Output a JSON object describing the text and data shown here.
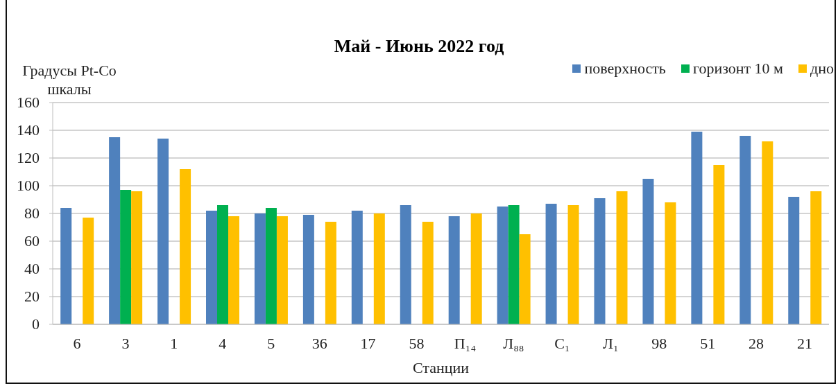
{
  "chart_data": {
    "type": "bar",
    "title": "Май - Июнь 2022 год",
    "ylabel": "Градусы Pt-Co шкалы",
    "xlabel": "Станции",
    "categories": [
      "6",
      "3",
      "1",
      "4",
      "5",
      "36",
      "17",
      "58",
      "П₁₄",
      "Л₈₈",
      "С₁",
      "Л₁",
      "98",
      "51",
      "28",
      "21"
    ],
    "series": [
      {
        "name": "поверхность",
        "color": "#4f81bd",
        "values": [
          84,
          135,
          134,
          82,
          80,
          79,
          82,
          86,
          78,
          85,
          87,
          91,
          105,
          139,
          136,
          92
        ]
      },
      {
        "name": "горизонт 10 м",
        "color": "#00b050",
        "values": [
          null,
          97,
          null,
          86,
          84,
          null,
          null,
          null,
          null,
          86,
          null,
          null,
          null,
          null,
          null,
          null
        ]
      },
      {
        "name": "дно",
        "color": "#ffc000",
        "values": [
          77,
          96,
          112,
          78,
          78,
          74,
          80,
          74,
          80,
          65,
          86,
          96,
          88,
          115,
          132,
          96
        ]
      }
    ],
    "ylim": [
      0,
      160
    ],
    "yticks": [
      0,
      20,
      40,
      60,
      80,
      100,
      120,
      140,
      160
    ],
    "grid": "y",
    "legend": "top right"
  }
}
